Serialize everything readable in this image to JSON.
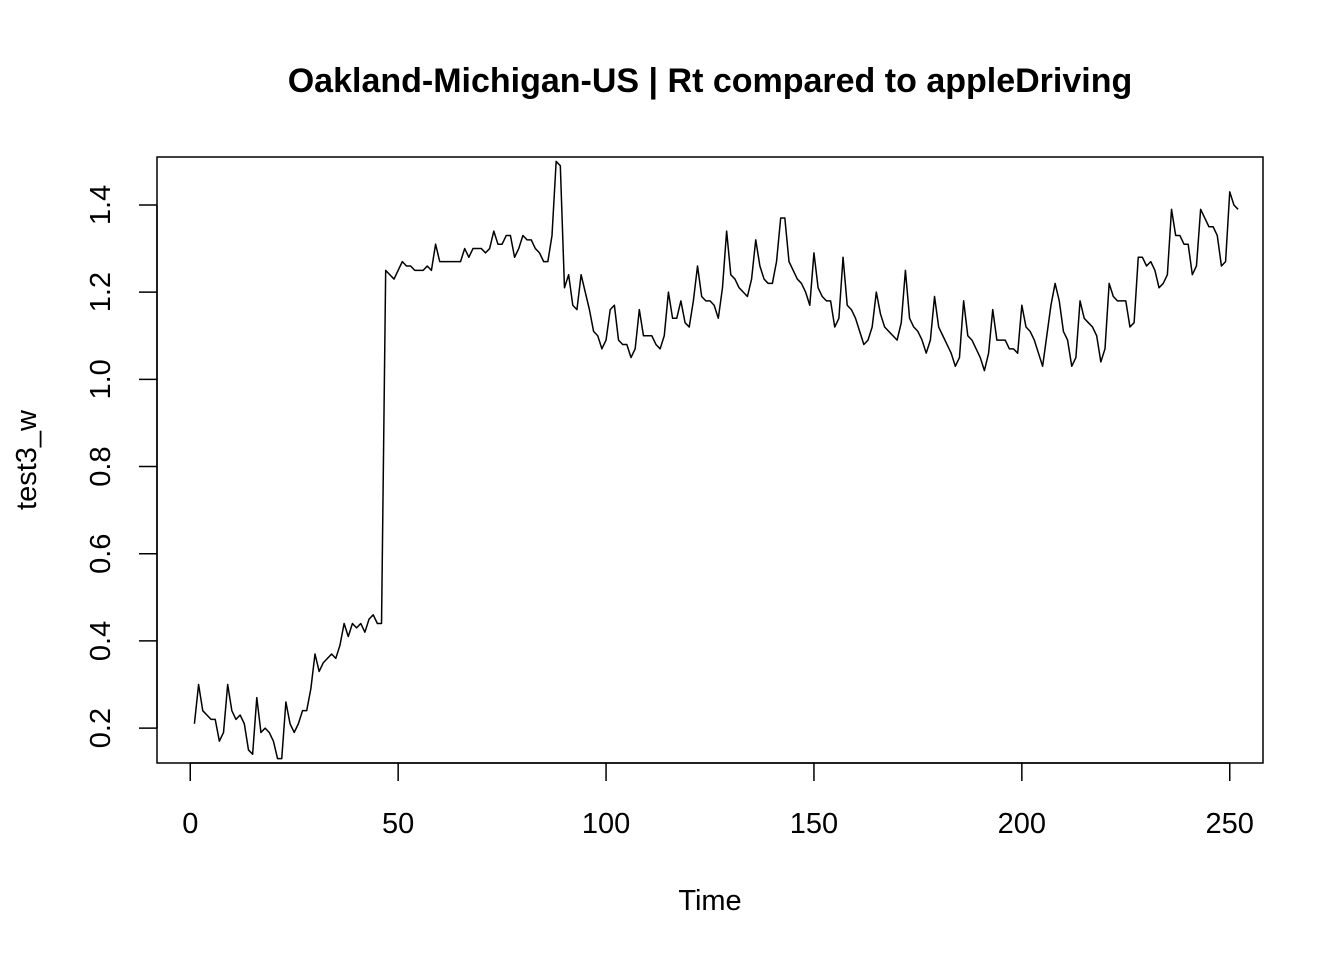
{
  "chart_data": {
    "type": "line",
    "title": "Oakland-Michigan-US | Rt compared to appleDriving",
    "xlabel": "Time",
    "ylabel": "test3_w",
    "xlim": [
      -8,
      258
    ],
    "ylim": [
      0.12,
      1.51
    ],
    "x_ticks": [
      0,
      50,
      100,
      150,
      200,
      250
    ],
    "x_tick_labels": [
      "0",
      "50",
      "100",
      "150",
      "200",
      "250"
    ],
    "y_ticks": [
      0.2,
      0.4,
      0.6,
      0.8,
      1.0,
      1.2,
      1.4
    ],
    "y_tick_labels": [
      "0.2",
      "0.4",
      "0.6",
      "0.8",
      "1.0",
      "1.2",
      "1.4"
    ],
    "grid": false,
    "legend": "none",
    "series": [
      {
        "color": "#000000",
        "x_start": 1,
        "x_step": 1,
        "values": [
          0.21,
          0.3,
          0.24,
          0.23,
          0.22,
          0.22,
          0.17,
          0.19,
          0.3,
          0.24,
          0.22,
          0.23,
          0.21,
          0.15,
          0.14,
          0.27,
          0.19,
          0.2,
          0.19,
          0.17,
          0.13,
          0.13,
          0.26,
          0.21,
          0.19,
          0.21,
          0.24,
          0.24,
          0.29,
          0.37,
          0.33,
          0.35,
          0.36,
          0.37,
          0.36,
          0.39,
          0.44,
          0.41,
          0.44,
          0.43,
          0.44,
          0.42,
          0.45,
          0.46,
          0.44,
          0.44,
          1.25,
          1.24,
          1.23,
          1.25,
          1.27,
          1.26,
          1.26,
          1.25,
          1.25,
          1.25,
          1.26,
          1.25,
          1.31,
          1.27,
          1.27,
          1.27,
          1.27,
          1.27,
          1.27,
          1.3,
          1.28,
          1.3,
          1.3,
          1.3,
          1.29,
          1.3,
          1.34,
          1.31,
          1.31,
          1.33,
          1.33,
          1.28,
          1.3,
          1.33,
          1.32,
          1.32,
          1.3,
          1.29,
          1.27,
          1.27,
          1.33,
          1.5,
          1.49,
          1.21,
          1.24,
          1.17,
          1.16,
          1.24,
          1.2,
          1.16,
          1.11,
          1.1,
          1.07,
          1.09,
          1.16,
          1.17,
          1.09,
          1.08,
          1.08,
          1.05,
          1.07,
          1.16,
          1.1,
          1.1,
          1.1,
          1.08,
          1.07,
          1.1,
          1.2,
          1.14,
          1.14,
          1.18,
          1.13,
          1.12,
          1.18,
          1.26,
          1.19,
          1.18,
          1.18,
          1.17,
          1.14,
          1.21,
          1.34,
          1.24,
          1.23,
          1.21,
          1.2,
          1.19,
          1.23,
          1.32,
          1.26,
          1.23,
          1.22,
          1.22,
          1.27,
          1.37,
          1.37,
          1.27,
          1.25,
          1.23,
          1.22,
          1.2,
          1.17,
          1.29,
          1.21,
          1.19,
          1.18,
          1.18,
          1.12,
          1.14,
          1.28,
          1.17,
          1.16,
          1.14,
          1.11,
          1.08,
          1.09,
          1.12,
          1.2,
          1.15,
          1.12,
          1.11,
          1.1,
          1.09,
          1.13,
          1.25,
          1.14,
          1.12,
          1.11,
          1.09,
          1.06,
          1.09,
          1.19,
          1.12,
          1.1,
          1.08,
          1.06,
          1.03,
          1.05,
          1.18,
          1.1,
          1.09,
          1.07,
          1.05,
          1.02,
          1.06,
          1.16,
          1.09,
          1.09,
          1.09,
          1.07,
          1.07,
          1.06,
          1.17,
          1.12,
          1.11,
          1.09,
          1.06,
          1.03,
          1.1,
          1.17,
          1.22,
          1.18,
          1.11,
          1.09,
          1.03,
          1.05,
          1.18,
          1.14,
          1.13,
          1.12,
          1.1,
          1.04,
          1.07,
          1.22,
          1.19,
          1.18,
          1.18,
          1.18,
          1.12,
          1.13,
          1.28,
          1.28,
          1.26,
          1.27,
          1.25,
          1.21,
          1.22,
          1.24,
          1.39,
          1.33,
          1.33,
          1.31,
          1.31,
          1.24,
          1.26,
          1.39,
          1.37,
          1.35,
          1.35,
          1.33,
          1.26,
          1.27,
          1.43,
          1.4,
          1.39
        ]
      }
    ]
  }
}
